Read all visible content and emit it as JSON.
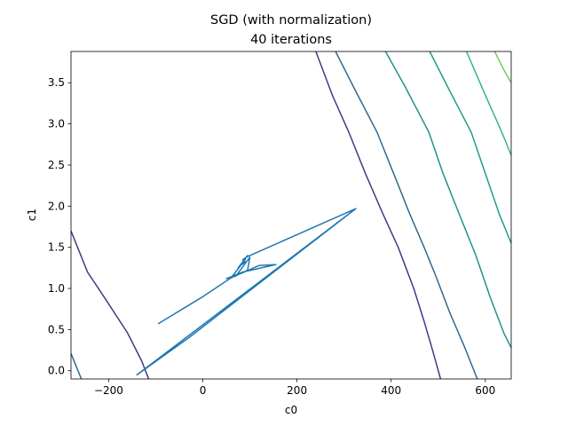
{
  "chart_data": {
    "type": "line",
    "title": "SGD (with normalization)",
    "subtitle": "40 iterations",
    "xlabel": "c0",
    "ylabel": "c1",
    "xlim": [
      -280,
      655
    ],
    "ylim": [
      -0.1,
      3.88
    ],
    "xticks": [
      -200,
      0,
      200,
      400,
      600
    ],
    "yticks": [
      0.0,
      0.5,
      1.0,
      1.5,
      2.0,
      2.5,
      3.0,
      3.5
    ],
    "xtick_labels": [
      "−200",
      "0",
      "200",
      "400",
      "600"
    ],
    "ytick_labels": [
      "0.0",
      "0.5",
      "1.0",
      "1.5",
      "2.0",
      "2.5",
      "3.0",
      "3.5"
    ],
    "grid": false,
    "legend": "none",
    "contours": [
      {
        "color": "#31688e",
        "points": [
          [
            -280,
            0.21
          ],
          [
            -258,
            -0.1
          ]
        ]
      },
      {
        "color": "#443983",
        "points": [
          [
            -280,
            1.7
          ],
          [
            -245,
            1.2
          ],
          [
            -210,
            0.9
          ],
          [
            -160,
            0.46
          ],
          [
            -130,
            0.12
          ],
          [
            -115,
            -0.1
          ]
        ]
      },
      {
        "color": "#443983",
        "points": [
          [
            240,
            3.88
          ],
          [
            275,
            3.35
          ],
          [
            310,
            2.9
          ],
          [
            345,
            2.4
          ],
          [
            383,
            1.9
          ],
          [
            415,
            1.5
          ],
          [
            448,
            1.0
          ],
          [
            470,
            0.6
          ],
          [
            488,
            0.25
          ],
          [
            505,
            -0.1
          ]
        ]
      },
      {
        "color": "#31688e",
        "points": [
          [
            282,
            3.88
          ],
          [
            320,
            3.45
          ],
          [
            370,
            2.9
          ],
          [
            405,
            2.4
          ],
          [
            440,
            1.9
          ],
          [
            470,
            1.5
          ],
          [
            495,
            1.15
          ],
          [
            525,
            0.7
          ],
          [
            555,
            0.3
          ],
          [
            583,
            -0.1
          ]
        ]
      },
      {
        "color": "#21918c",
        "points": [
          [
            388,
            3.88
          ],
          [
            430,
            3.45
          ],
          [
            480,
            2.9
          ],
          [
            510,
            2.4
          ],
          [
            545,
            1.9
          ],
          [
            580,
            1.4
          ],
          [
            610,
            0.9
          ],
          [
            640,
            0.45
          ],
          [
            655,
            0.28
          ]
        ]
      },
      {
        "color": "#1f9e89",
        "points": [
          [
            482,
            3.88
          ],
          [
            520,
            3.45
          ],
          [
            570,
            2.9
          ],
          [
            600,
            2.4
          ],
          [
            630,
            1.9
          ],
          [
            655,
            1.55
          ]
        ]
      },
      {
        "color": "#35b779",
        "points": [
          [
            560,
            3.88
          ],
          [
            600,
            3.35
          ],
          [
            635,
            2.9
          ],
          [
            655,
            2.62
          ]
        ]
      },
      {
        "color": "#6ece58",
        "points": [
          [
            620,
            3.88
          ],
          [
            640,
            3.65
          ],
          [
            655,
            3.5
          ]
        ]
      }
    ],
    "series": [
      {
        "color": "#1f77b4",
        "x": [
          -95,
          0,
          60,
          120,
          155,
          85,
          50,
          70,
          100,
          95,
          60,
          90,
          75,
          95,
          80,
          90,
          85,
          92,
          325,
          -140,
          -30,
          325
        ],
        "y": [
          0.57,
          0.9,
          1.13,
          1.28,
          1.29,
          1.2,
          1.12,
          1.15,
          1.38,
          1.22,
          1.13,
          1.35,
          1.25,
          1.4,
          1.28,
          1.32,
          1.35,
          1.38,
          1.97,
          -0.05,
          0.4,
          1.97
        ]
      }
    ]
  }
}
